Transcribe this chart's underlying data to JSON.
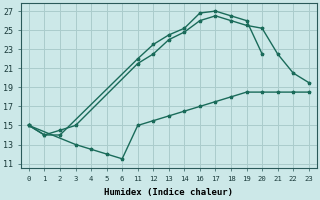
{
  "xlabel": "Humidex (Indice chaleur)",
  "bg_color": "#cce8e8",
  "grid_color": "#aacccc",
  "line_color": "#1a6b5a",
  "xtick_labels": [
    "0",
    "1",
    "2",
    "3",
    "4",
    "5",
    "6",
    "11",
    "12",
    "13",
    "14",
    "16",
    "17",
    "18",
    "19",
    "20",
    "21",
    "22",
    "23"
  ],
  "yticks": [
    11,
    13,
    15,
    17,
    19,
    21,
    23,
    25,
    27
  ],
  "ylim": [
    10.5,
    27.8
  ],
  "line1_pos": [
    0,
    1,
    2,
    11,
    12,
    13,
    14,
    16,
    17,
    18,
    19,
    20
  ],
  "line1_y": [
    15,
    14,
    14,
    22,
    23.5,
    24.5,
    25.2,
    26.8,
    27.0,
    26.5,
    26.0,
    22.5
  ],
  "line2_pos": [
    0,
    1,
    2,
    3,
    11,
    12,
    13,
    14,
    16,
    17,
    18,
    19,
    20,
    21,
    22,
    23
  ],
  "line2_y": [
    15,
    14,
    14.5,
    15,
    21.5,
    22.5,
    24,
    24.8,
    26.0,
    26.5,
    26.0,
    25.5,
    25.2,
    22.5,
    20.5,
    19.5
  ],
  "line3_pos": [
    0,
    3,
    4,
    5,
    6,
    11,
    12,
    13,
    14,
    16,
    17,
    18,
    19,
    20,
    21,
    22,
    23
  ],
  "line3_y": [
    15,
    13.0,
    12.5,
    12.0,
    11.5,
    15.0,
    15.5,
    16.0,
    16.5,
    17.0,
    17.5,
    18.0,
    18.5,
    18.5,
    18.5,
    18.5,
    18.5
  ]
}
